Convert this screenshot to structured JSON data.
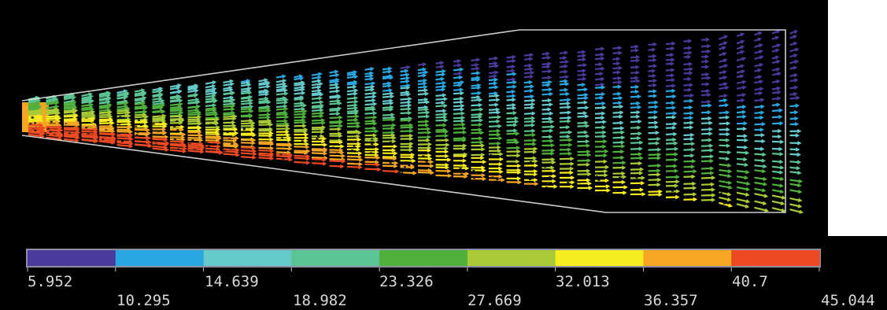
{
  "colormap": {
    "bands": [
      "#4a3a9c",
      "#2aa6e0",
      "#66c9c9",
      "#5cc493",
      "#4fb03c",
      "#a9cc36",
      "#f6ec1e",
      "#f5a623",
      "#ec4a23"
    ],
    "frame_color": "#8b8fa0"
  },
  "legend": {
    "upper_labels": [
      "5.952",
      "14.639",
      "23.326",
      "32.013",
      "40.7"
    ],
    "lower_labels": [
      "10.295",
      "18.982",
      "27.669",
      "36.357",
      "45.044"
    ]
  },
  "plot": {
    "background": "#000000",
    "outline_color": "#f0f0f0",
    "vector_rows": 30,
    "vector_cols": 44
  }
}
